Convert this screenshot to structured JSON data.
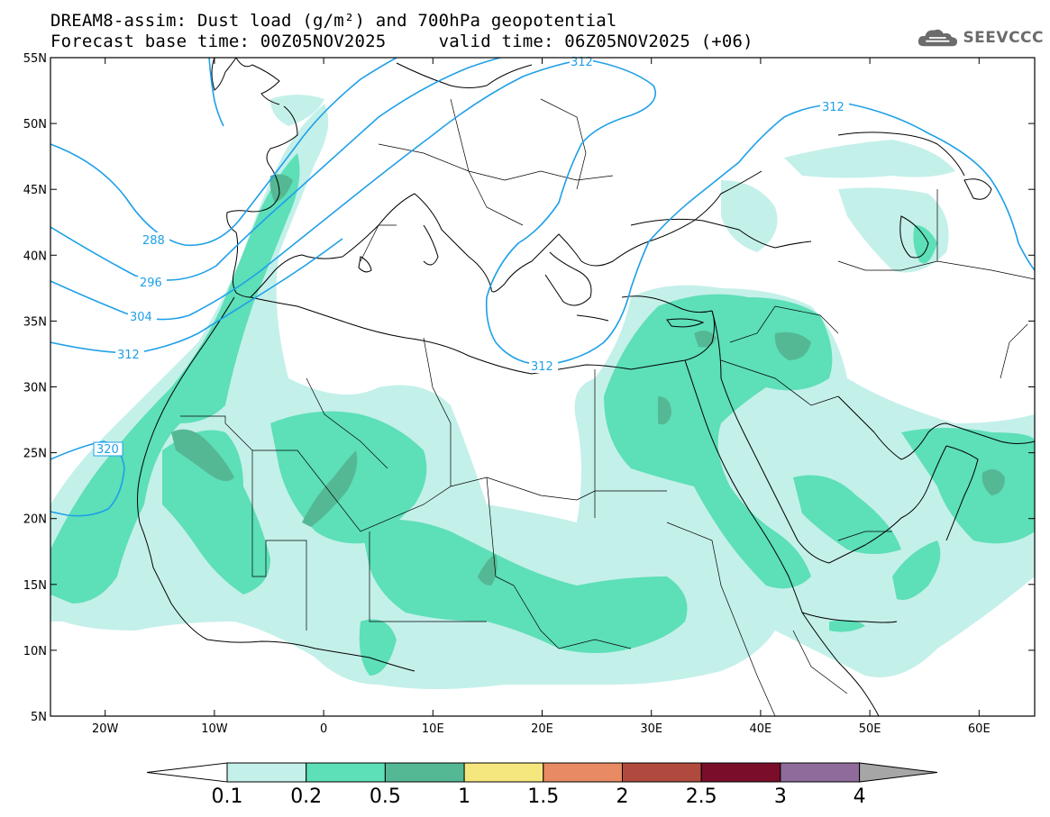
{
  "header": {
    "title_line1": "DREAM8-assim: Dust load (g/m²) and 700hPa geopotential",
    "title_line2": "Forecast base time: 00Z05NOV2025     valid time: 06Z05NOV2025 (+06)"
  },
  "logo": {
    "text": "SEEVCCC",
    "icon": "cloud-logo-icon"
  },
  "map": {
    "lat_ticks": [
      "55N",
      "50N",
      "45N",
      "40N",
      "35N",
      "30N",
      "25N",
      "20N",
      "15N",
      "10N",
      "5N"
    ],
    "lon_ticks": [
      "20W",
      "10W",
      "0",
      "10E",
      "20E",
      "30E",
      "40E",
      "50E",
      "60E"
    ],
    "contour_labels": [
      "288",
      "296",
      "304",
      "312",
      "320",
      "312",
      "312",
      "312"
    ]
  },
  "legend": {
    "labels": [
      "0.1",
      "0.2",
      "0.5",
      "1",
      "1.5",
      "2",
      "2.5",
      "3",
      "4"
    ],
    "colors": [
      "#c4f0ea",
      "#5ddfb8",
      "#55b894",
      "#f5e77e",
      "#e88a63",
      "#b04a3e",
      "#7a0e2a",
      "#8f6b9b",
      "#a6a6a6"
    ]
  },
  "colors": {
    "dust_low": "#c4f0ea",
    "dust_mid": "#5ddfb8",
    "dust_high": "#55b894",
    "contour": "#1fa0e8",
    "coast": "#000000"
  }
}
